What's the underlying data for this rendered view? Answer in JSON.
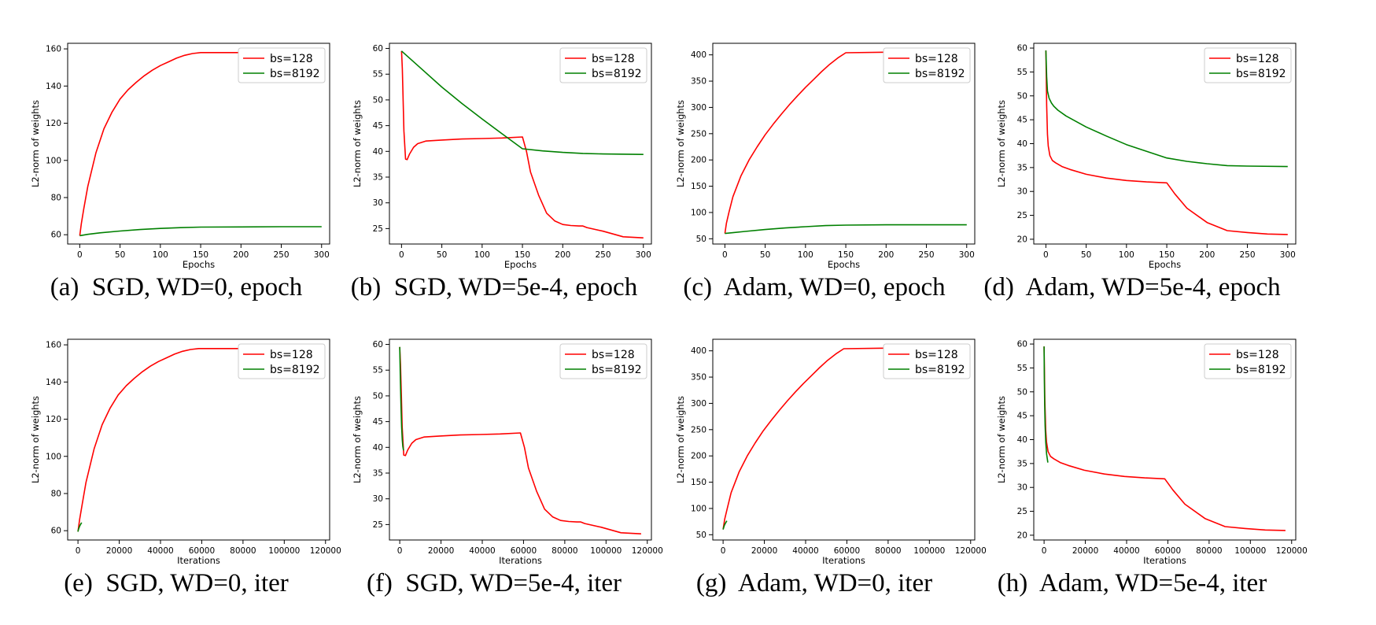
{
  "chart_data": [
    {
      "type": "line",
      "panel": "a",
      "caption": "(a)  SGD, WD=0, epoch",
      "xlabel": "Epochs",
      "ylabel": "L2-norm of weights",
      "xlim": [
        -15,
        310
      ],
      "ylim": [
        55,
        163
      ],
      "xticks": [
        0,
        50,
        100,
        150,
        200,
        250,
        300
      ],
      "yticks": [
        60,
        80,
        100,
        120,
        140,
        160
      ],
      "legend": "top-right",
      "series": [
        {
          "name": "bs=128",
          "color": "#ff0000",
          "x": [
            0,
            2,
            5,
            10,
            20,
            30,
            40,
            50,
            60,
            70,
            80,
            90,
            100,
            110,
            120,
            130,
            140,
            150,
            200,
            225,
            300
          ],
          "y": [
            59.5,
            66,
            74,
            86,
            104,
            117,
            126,
            133,
            138,
            142,
            145.5,
            148.5,
            151,
            153,
            155,
            156.5,
            157.5,
            158,
            158,
            158,
            158
          ]
        },
        {
          "name": "bs=8192",
          "color": "#008000",
          "x": [
            0,
            10,
            25,
            50,
            75,
            100,
            125,
            150,
            200,
            250,
            300
          ],
          "y": [
            59.5,
            60.2,
            61,
            62,
            62.8,
            63.4,
            63.8,
            64.1,
            64.2,
            64.3,
            64.3
          ]
        }
      ]
    },
    {
      "type": "line",
      "panel": "b",
      "caption": "(b)  SGD, WD=5e-4, epoch",
      "xlabel": "Epochs",
      "ylabel": "L2-norm of weights",
      "xlim": [
        -15,
        310
      ],
      "ylim": [
        22,
        61
      ],
      "xticks": [
        0,
        50,
        100,
        150,
        200,
        250,
        300
      ],
      "yticks": [
        25,
        30,
        35,
        40,
        45,
        50,
        55,
        60
      ],
      "legend": "top-right",
      "series": [
        {
          "name": "bs=128",
          "color": "#ff0000",
          "x": [
            0,
            1,
            2,
            3,
            5,
            7,
            10,
            15,
            20,
            30,
            50,
            75,
            100,
            125,
            150,
            155,
            160,
            170,
            180,
            190,
            200,
            210,
            220,
            225,
            230,
            250,
            275,
            300
          ],
          "y": [
            59.5,
            56,
            50,
            44,
            38.5,
            38.4,
            39.5,
            40.8,
            41.5,
            42,
            42.2,
            42.4,
            42.5,
            42.6,
            42.8,
            40,
            36,
            31.5,
            28,
            26.5,
            25.8,
            25.6,
            25.5,
            25.5,
            25.2,
            24.5,
            23.4,
            23.2
          ]
        },
        {
          "name": "bs=8192",
          "color": "#008000",
          "x": [
            0,
            25,
            50,
            75,
            100,
            125,
            150,
            175,
            200,
            225,
            250,
            300
          ],
          "y": [
            59.5,
            56,
            52.5,
            49.3,
            46.3,
            43.4,
            40.5,
            40.1,
            39.8,
            39.6,
            39.5,
            39.4
          ]
        }
      ]
    },
    {
      "type": "line",
      "panel": "c",
      "caption": "(c)  Adam, WD=0, epoch",
      "xlabel": "Epochs",
      "ylabel": "L2-norm of weights",
      "xlim": [
        -15,
        310
      ],
      "ylim": [
        40,
        422
      ],
      "xticks": [
        0,
        50,
        100,
        150,
        200,
        250,
        300
      ],
      "yticks": [
        50,
        100,
        150,
        200,
        250,
        300,
        350,
        400
      ],
      "legend": "top-right",
      "series": [
        {
          "name": "bs=128",
          "color": "#ff0000",
          "x": [
            0,
            2,
            5,
            10,
            20,
            30,
            40,
            50,
            60,
            70,
            80,
            90,
            100,
            110,
            120,
            130,
            140,
            150,
            200,
            225,
            300
          ],
          "y": [
            60,
            80,
            100,
            130,
            170,
            200,
            225,
            248,
            268,
            287,
            305,
            322,
            338,
            353,
            368,
            382,
            394,
            404,
            405,
            405,
            405
          ]
        },
        {
          "name": "bs=8192",
          "color": "#008000",
          "x": [
            0,
            10,
            25,
            50,
            75,
            100,
            125,
            150,
            200,
            250,
            300
          ],
          "y": [
            60,
            61.5,
            64,
            67.5,
            70.5,
            73,
            75,
            76,
            76.5,
            76.5,
            76.5
          ]
        }
      ]
    },
    {
      "type": "line",
      "panel": "d",
      "caption": "(d)  Adam, WD=5e-4, epoch",
      "xlabel": "Epochs",
      "ylabel": "L2-norm of weights",
      "xlim": [
        -15,
        310
      ],
      "ylim": [
        19,
        61
      ],
      "xticks": [
        0,
        50,
        100,
        150,
        200,
        250,
        300
      ],
      "yticks": [
        20,
        25,
        30,
        35,
        40,
        45,
        50,
        55,
        60
      ],
      "legend": "top-right",
      "series": [
        {
          "name": "bs=128",
          "color": "#ff0000",
          "x": [
            0,
            1,
            2,
            3,
            5,
            8,
            12,
            20,
            30,
            50,
            75,
            100,
            125,
            150,
            160,
            175,
            200,
            225,
            250,
            275,
            300
          ],
          "y": [
            59.5,
            48,
            42,
            39.5,
            37.5,
            36.5,
            36,
            35.2,
            34.6,
            33.6,
            32.8,
            32.3,
            32,
            31.8,
            29.5,
            26.5,
            23.5,
            21.8,
            21.4,
            21.1,
            21
          ]
        },
        {
          "name": "bs=8192",
          "color": "#008000",
          "x": [
            0,
            1,
            2,
            4,
            7,
            10,
            15,
            25,
            50,
            75,
            100,
            125,
            150,
            175,
            200,
            225,
            250,
            300
          ],
          "y": [
            59.5,
            54,
            51,
            49.5,
            48.5,
            47.8,
            47,
            45.8,
            43.5,
            41.6,
            39.8,
            38.4,
            37,
            36.3,
            35.8,
            35.4,
            35.3,
            35.2
          ]
        }
      ]
    },
    {
      "type": "line",
      "panel": "e",
      "caption": "(e)  SGD, WD=0, iter",
      "xlabel": "Iterations",
      "ylabel": "L2-norm of weights",
      "xlim": [
        -5000,
        122000
      ],
      "ylim": [
        55,
        163
      ],
      "xticks": [
        0,
        20000,
        40000,
        60000,
        80000,
        100000,
        120000
      ],
      "yticks": [
        60,
        80,
        100,
        120,
        140,
        160
      ],
      "legend": "top-right",
      "series": [
        {
          "name": "bs=128",
          "color": "#ff0000",
          "x": [
            0,
            800,
            2000,
            3900,
            7800,
            11700,
            15600,
            19500,
            23400,
            27300,
            31200,
            35100,
            39000,
            42900,
            46800,
            50700,
            54600,
            58500,
            78000,
            87750,
            117000
          ],
          "y": [
            59.5,
            66,
            74,
            86,
            104,
            117,
            126,
            133,
            138,
            142,
            145.5,
            148.5,
            151,
            153,
            155,
            156.5,
            157.5,
            158,
            158,
            158,
            158
          ]
        },
        {
          "name": "bs=8192",
          "color": "#008000",
          "x": [
            0,
            200,
            500,
            900,
            1500,
            1830
          ],
          "y": [
            59.5,
            60.5,
            61.5,
            62.7,
            63.8,
            64.3
          ]
        }
      ]
    },
    {
      "type": "line",
      "panel": "f",
      "caption": "(f)  SGD, WD=5e-4, iter",
      "xlabel": "Iterations",
      "ylabel": "L2-norm of weights",
      "xlim": [
        -5000,
        122000
      ],
      "ylim": [
        22,
        61
      ],
      "xticks": [
        0,
        20000,
        40000,
        60000,
        80000,
        100000,
        120000
      ],
      "yticks": [
        25,
        30,
        35,
        40,
        45,
        50,
        55,
        60
      ],
      "legend": "top-right",
      "series": [
        {
          "name": "bs=128",
          "color": "#ff0000",
          "x": [
            0,
            390,
            780,
            1170,
            1950,
            2730,
            3900,
            5850,
            7800,
            11700,
            19500,
            29250,
            39000,
            48750,
            58500,
            60450,
            62400,
            66300,
            70200,
            74100,
            78000,
            81900,
            85800,
            87750,
            89700,
            97500,
            107250,
            117000
          ],
          "y": [
            59.5,
            56,
            50,
            44,
            38.5,
            38.4,
            39.5,
            40.8,
            41.5,
            42,
            42.2,
            42.4,
            42.5,
            42.6,
            42.8,
            40,
            36,
            31.5,
            28,
            26.5,
            25.8,
            25.6,
            25.5,
            25.5,
            25.2,
            24.5,
            23.4,
            23.2
          ]
        },
        {
          "name": "bs=8192",
          "color": "#008000",
          "x": [
            0,
            300,
            600,
            900,
            1200,
            1500,
            1830
          ],
          "y": [
            59.5,
            53,
            48,
            44,
            41.5,
            40.2,
            39.4
          ]
        }
      ]
    },
    {
      "type": "line",
      "panel": "g",
      "caption": "(g)  Adam, WD=0, iter",
      "xlabel": "Iterations",
      "ylabel": "L2-norm of weights",
      "xlim": [
        -5000,
        122000
      ],
      "ylim": [
        40,
        422
      ],
      "xticks": [
        0,
        20000,
        40000,
        60000,
        80000,
        100000,
        120000
      ],
      "yticks": [
        50,
        100,
        150,
        200,
        250,
        300,
        350,
        400
      ],
      "legend": "top-right",
      "series": [
        {
          "name": "bs=128",
          "color": "#ff0000",
          "x": [
            0,
            800,
            2000,
            3900,
            7800,
            11700,
            15600,
            19500,
            23400,
            27300,
            31200,
            35100,
            39000,
            42900,
            46800,
            50700,
            54600,
            58500,
            78000,
            87750,
            117000
          ],
          "y": [
            60,
            80,
            100,
            130,
            170,
            200,
            225,
            248,
            268,
            287,
            305,
            322,
            338,
            353,
            368,
            382,
            394,
            404,
            405,
            405,
            405
          ]
        },
        {
          "name": "bs=8192",
          "color": "#008000",
          "x": [
            0,
            300,
            700,
            1200,
            1830
          ],
          "y": [
            60,
            64,
            68.5,
            72.5,
            76.5
          ]
        }
      ]
    },
    {
      "type": "line",
      "panel": "h",
      "caption": "(h)  Adam, WD=5e-4, iter",
      "xlabel": "Iterations",
      "ylabel": "L2-norm of weights",
      "xlim": [
        -5000,
        122000
      ],
      "ylim": [
        19,
        61
      ],
      "xticks": [
        0,
        20000,
        40000,
        60000,
        80000,
        100000,
        120000
      ],
      "yticks": [
        20,
        25,
        30,
        35,
        40,
        45,
        50,
        55,
        60
      ],
      "legend": "top-right",
      "series": [
        {
          "name": "bs=128",
          "color": "#ff0000",
          "x": [
            0,
            390,
            780,
            1170,
            1950,
            3120,
            4680,
            7800,
            11700,
            19500,
            29250,
            39000,
            48750,
            58500,
            62400,
            68250,
            78000,
            87750,
            97500,
            107250,
            117000
          ],
          "y": [
            59.5,
            48,
            42,
            39.5,
            37.5,
            36.5,
            36,
            35.2,
            34.6,
            33.6,
            32.8,
            32.3,
            32,
            31.8,
            29.5,
            26.5,
            23.5,
            21.8,
            21.4,
            21.1,
            21
          ]
        },
        {
          "name": "bs=8192",
          "color": "#008000",
          "x": [
            0,
            150,
            300,
            500,
            800,
            1200,
            1830
          ],
          "y": [
            59.5,
            52,
            47,
            43,
            39.5,
            37,
            35.2
          ]
        }
      ]
    }
  ]
}
